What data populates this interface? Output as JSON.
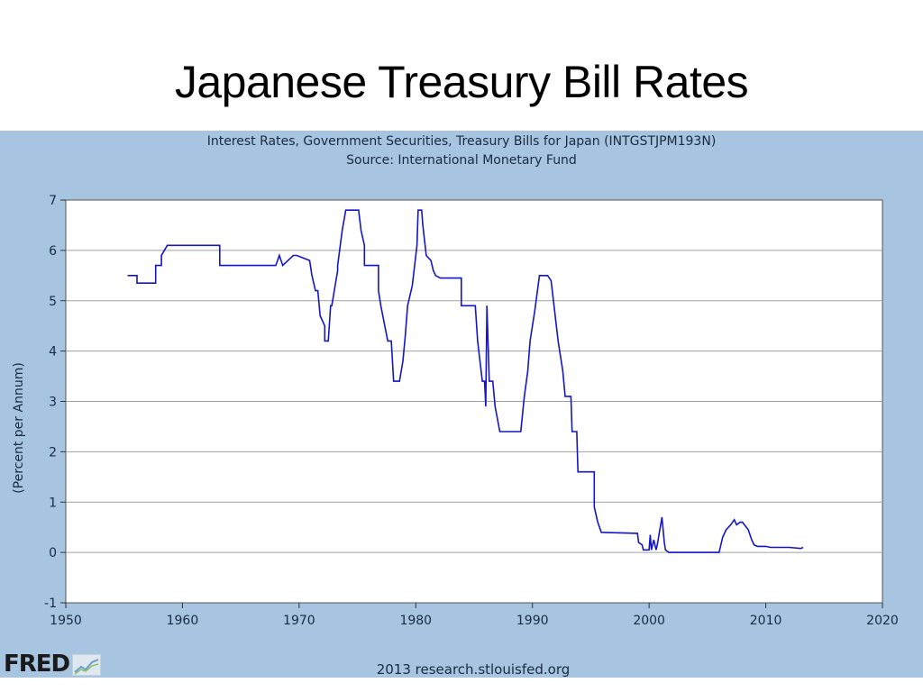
{
  "slide": {
    "title": "Japanese Treasury Bill Rates"
  },
  "chart_data": {
    "type": "line",
    "title": "Interest Rates, Government Securities, Treasury Bills for Japan (INTGSTJPM193N)",
    "subtitle": "Source: International Monetary Fund",
    "xlabel": "",
    "ylabel": "(Percent per Annum)",
    "xlim": [
      1950,
      2020
    ],
    "ylim": [
      -1,
      7
    ],
    "x_ticks": [
      "1950",
      "1960",
      "1970",
      "1980",
      "1990",
      "2000",
      "2010",
      "2020"
    ],
    "y_ticks": [
      "-1",
      "0",
      "1",
      "2",
      "3",
      "4",
      "5",
      "6",
      "7"
    ],
    "grid": true,
    "colors": {
      "line": "#1515c8",
      "plot_bg": "#ffffff",
      "panel_bg": "#a7c4e0",
      "grid": "#a0a0a0"
    },
    "series": [
      {
        "x": [
          1955.3,
          1956.1,
          1956.1,
          1957.7,
          1957.7,
          1958.2,
          1958.2,
          1958.7,
          1958.7,
          1963.2,
          1963.2,
          1968.0,
          1968.3,
          1968.6,
          1968.6,
          1969.5,
          1969.8,
          1970.9,
          1971.1,
          1971.4,
          1971.6,
          1971.8,
          1972.2,
          1972.2,
          1972.5,
          1972.7,
          1972.8,
          1973.3,
          1973.3,
          1973.7,
          1974.0,
          1974.2,
          1974.3,
          1975.1,
          1975.3,
          1975.6,
          1975.6,
          1976.8,
          1976.8,
          1977.0,
          1977.6,
          1977.9,
          1978.1,
          1978.3,
          1978.6,
          1978.9,
          1979.1,
          1979.3,
          1979.7,
          1980.1,
          1980.2,
          1980.5,
          1980.6,
          1980.9,
          1981.3,
          1981.5,
          1981.7,
          1982.1,
          1983.9,
          1983.9,
          1985.0,
          1985.1,
          1985.3,
          1985.7,
          1985.9,
          1986.0,
          1986.1,
          1986.3,
          1986.6,
          1986.8,
          1987.2,
          1987.5,
          1989.0,
          1989.3,
          1989.6,
          1989.8,
          1990.2,
          1990.6,
          1991.3,
          1991.6,
          1991.8,
          1992.0,
          1992.2,
          1992.6,
          1992.8,
          1993.3,
          1993.4,
          1993.8,
          1993.9,
          1995.3,
          1995.3,
          1995.6,
          1995.9,
          1999.0,
          1999.1,
          1999.4,
          1999.5,
          2000.0,
          2000.1,
          2000.2,
          2000.4,
          2000.6,
          2000.7,
          2001.1,
          2001.3,
          2001.4,
          2001.7,
          2004.0,
          2006.0,
          2006.3,
          2006.6,
          2007.0,
          2007.3,
          2007.5,
          2007.8,
          2008.0,
          2008.5,
          2008.8,
          2009.0,
          2009.3,
          2009.6,
          2010.0,
          2010.4,
          2011.0,
          2012.0,
          2013.0,
          2013.2
        ],
        "y": [
          5.5,
          5.5,
          5.35,
          5.35,
          5.7,
          5.7,
          5.9,
          6.1,
          6.1,
          6.1,
          5.7,
          5.7,
          5.9,
          5.7,
          5.7,
          5.9,
          5.9,
          5.8,
          5.5,
          5.2,
          5.2,
          4.7,
          4.5,
          4.2,
          4.2,
          4.9,
          4.9,
          5.6,
          5.7,
          6.4,
          6.8,
          6.8,
          6.8,
          6.8,
          6.4,
          6.1,
          5.7,
          5.7,
          5.2,
          4.9,
          4.2,
          4.2,
          3.4,
          3.4,
          3.4,
          3.8,
          4.3,
          4.9,
          5.3,
          6.1,
          6.8,
          6.8,
          6.5,
          5.9,
          5.8,
          5.6,
          5.5,
          5.45,
          5.45,
          4.9,
          4.9,
          4.9,
          4.2,
          3.4,
          3.4,
          2.9,
          4.9,
          3.4,
          3.4,
          2.9,
          2.4,
          2.4,
          2.4,
          3.1,
          3.6,
          4.2,
          4.8,
          5.5,
          5.5,
          5.4,
          5.0,
          4.6,
          4.2,
          3.6,
          3.1,
          3.1,
          2.4,
          2.4,
          1.6,
          1.6,
          0.9,
          0.6,
          0.4,
          0.38,
          0.2,
          0.15,
          0.05,
          0.05,
          0.35,
          0.05,
          0.25,
          0.05,
          0.15,
          0.7,
          0.2,
          0.05,
          0.0,
          0.0,
          0.0,
          0.3,
          0.45,
          0.55,
          0.65,
          0.55,
          0.6,
          0.6,
          0.45,
          0.25,
          0.15,
          0.12,
          0.12,
          0.12,
          0.1,
          0.1,
          0.1,
          0.08,
          0.1
        ]
      }
    ]
  },
  "footer": {
    "logo": "FRED",
    "credit": "2013 research.stlouisfed.org"
  }
}
